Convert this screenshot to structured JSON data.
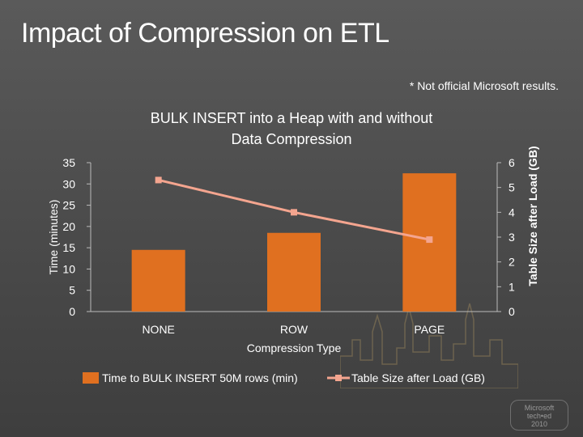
{
  "slide": {
    "title": "Impact of Compression on ETL",
    "note": "* Not official Microsoft results."
  },
  "colors": {
    "bar": "#e07020",
    "line": "#f4a58f",
    "text": "#ffffff"
  },
  "chart_data": {
    "type": "bar",
    "title": "BULK INSERT into a Heap with and without Data Compression",
    "xlabel": "Compression Type",
    "ylabel": "Time (minutes)",
    "y2label": "Table Size after Load (GB)",
    "categories": [
      "NONE",
      "ROW",
      "PAGE"
    ],
    "ylim": [
      0,
      35
    ],
    "y2lim": [
      0,
      6
    ],
    "yticks": [
      0,
      5,
      10,
      15,
      20,
      25,
      30,
      35
    ],
    "y2ticks": [
      0,
      1,
      2,
      3,
      4,
      5,
      6
    ],
    "series": [
      {
        "name": "Time to BULK INSERT 50M rows (min)",
        "type": "bar",
        "axis": "left",
        "values": [
          14.5,
          18.5,
          32.5
        ]
      },
      {
        "name": "Table Size after Load (GB)",
        "type": "line",
        "axis": "right",
        "values": [
          5.3,
          4.0,
          2.9
        ]
      }
    ],
    "legend": "bottom",
    "grid": false
  }
}
